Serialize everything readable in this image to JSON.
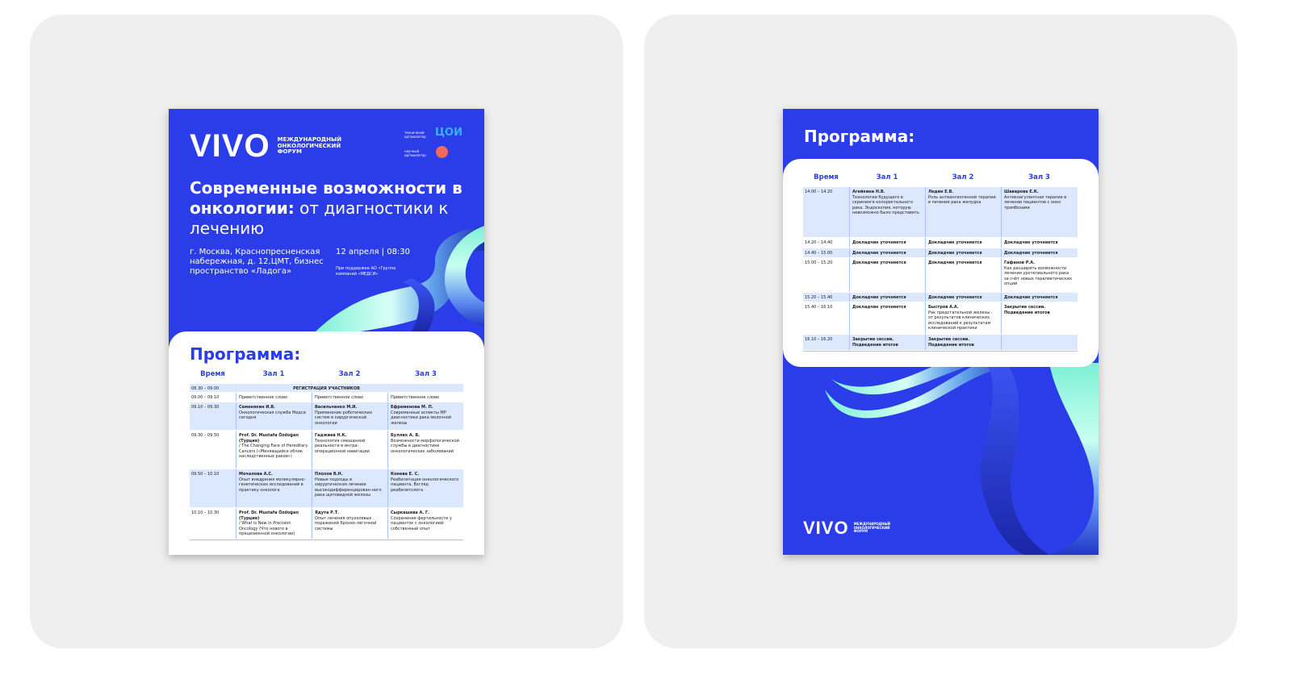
{
  "brand": {
    "name": "VIVO",
    "subtitle": [
      "МЕЖДУНАРОДНЫЙ",
      "ОНКОЛОГИЧЕСКИЙ",
      "ФОРУМ"
    ],
    "blue": "#2a3de9",
    "mint": "#7ff0d6"
  },
  "poster_front": {
    "organizers": {
      "technical_label": "техничесий организатор",
      "technical_logo": "ЦОИ",
      "scientific_label": "научный организатор"
    },
    "title_bold": "Современные возможности в онкологии:",
    "title_light": "от диагностики к лечению",
    "address": "г. Москва, Краснопресненская набережная, д. 12,ЦМТ, бизнес пространство «Ладога»",
    "date": "12 апреля | 08:30",
    "support": "При поддержке АО «Группа компаний «МЕДСИ»",
    "program_title": "Программа:",
    "headers": [
      "Время",
      "Зал 1",
      "Зал 2",
      "Зал 3"
    ],
    "rows": [
      {
        "time": "08.30 – 09.00",
        "span": "РЕГИСТРАЦИЯ УЧАСТНИКОВ"
      },
      {
        "time": "09.00 – 09.10",
        "cells": [
          {
            "text": "Приветственное слово"
          },
          {
            "text": "Приветственное слово"
          },
          {
            "text": "Приветственное слово"
          }
        ]
      },
      {
        "time": "09.10 – 09.30",
        "cells": [
          {
            "name": "Семенякин И.В.",
            "text": "Онкологическая служба Медси сегодня"
          },
          {
            "name": "Васильченко М.И.",
            "text": "Применение роботических систем в хирургической онкологии"
          },
          {
            "name": "Ефременова М. П.",
            "text": "Современные аспекты МР диагностики рака молочной железы"
          }
        ]
      },
      {
        "time": "09.30 – 09.50",
        "cells": [
          {
            "name": "Prof. Dr. Mustafa Özdoğan (Турция)",
            "text": "/ The Changing Face of Hereditary Cancers («Меняющийся облик наследственных раков»)"
          },
          {
            "name": "Гаджиев Н.К.",
            "text": "Технология смешанной реальности в интра-операционной навигации"
          },
          {
            "name": "Буллих А. В.",
            "text": "Возможности морфологической службы в диагностике онкологических заболеваний"
          }
        ]
      },
      {
        "time": "09.50 – 10.10",
        "cells": [
          {
            "name": "Мочалова А.С.",
            "text": "Опыт внедрения молекулярно-генетических исследований в практику онколога"
          },
          {
            "name": "Плохов В.Н.",
            "text": "Новые подходы в хирургическом лечении высокодифференцирован-ного рака щитовидной железы"
          },
          {
            "name": "Конева Е. С.",
            "text": "Реабилитация онкологического пациента. Взгляд реабилитолога"
          }
        ]
      },
      {
        "time": "10.10 – 10.30",
        "cells": [
          {
            "name": "Prof. Dr. Mustafa Özdoğan (Турция)",
            "text": "/ What is New in Precision Oncology (Что нового в прецизионной онкологии)"
          },
          {
            "name": "Ядута Р.Т.",
            "text": "Опыт лечения опухолевых поражений бронхо-легочной системы"
          },
          {
            "name": "Сыркашева А. Г.",
            "text": "Сохранение фертильности у пациенток с онкологией: собственный опыт"
          }
        ]
      }
    ]
  },
  "poster_back": {
    "program_title": "Программа:",
    "headers": [
      "Время",
      "Зал 1",
      "Зал 2",
      "Зал 3"
    ],
    "rows": [
      {
        "time": "14.00 – 14.20",
        "cells": [
          {
            "name": "Агейкина Н.В.",
            "text": "Технологии будущего в скрининге колоректального рака. Эндоскопия, которую невозможно было представить"
          },
          {
            "name": "Ледин Е.В.",
            "text": "Роль антиангиогенной терапии в лечении рака желудка"
          },
          {
            "name": "Шаварова Е.К.",
            "text": "Антикоагулянтная терапия в лечении пациентов с онко тромбозами"
          }
        ]
      },
      {
        "time": "14.20 – 14.40",
        "cells": [
          {
            "name": "Докладчик уточняется"
          },
          {
            "name": "Докладчик уточняется"
          },
          {
            "name": "Докладчик уточняется"
          }
        ]
      },
      {
        "time": "14.40 – 15.00",
        "cells": [
          {
            "name": "Докладчик уточняется"
          },
          {
            "name": "Докладчик уточняется"
          },
          {
            "name": "Докладчик уточняется"
          }
        ]
      },
      {
        "time": "15.00 – 15.20",
        "cells": [
          {
            "name": "Докладчик уточняется"
          },
          {
            "name": "Докладчик уточняется"
          },
          {
            "name": "Гафанов Р.А.",
            "text": "Как расширить возможности лечения уротелиального рака за счёт новых терапевтических опций"
          }
        ]
      },
      {
        "time": "15.20 – 15.40",
        "cells": [
          {
            "name": "Докладчик уточняется"
          },
          {
            "name": "Докладчик уточняется"
          },
          {
            "name": "Докладчик уточняется"
          }
        ]
      },
      {
        "time": "15.40 – 16.10",
        "cells": [
          {
            "name": "Докладчик уточняется"
          },
          {
            "name": "Быстров А.А.",
            "text": "Рак предстательной железы - от результатов клинических исследований к результатам клинической практики"
          },
          {
            "name": "Закрытие сессии. Подведение итогов"
          }
        ]
      },
      {
        "time": "16.10 – 16.20",
        "cells": [
          {
            "name": "Закрытие сессии. Подведение итогов"
          },
          {
            "name": "Закрытие сессии. Подведение итогов"
          },
          {
            "name": ""
          }
        ]
      }
    ]
  }
}
